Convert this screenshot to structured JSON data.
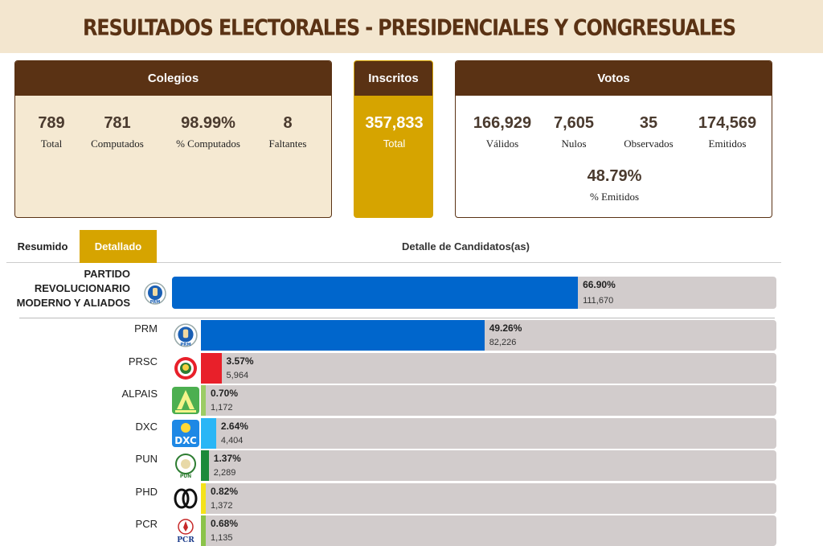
{
  "header": {
    "title": "RESULTADOS ELECTORALES - PRESIDENCIALES Y CONGRESUALES"
  },
  "colegios": {
    "title": "Colegios",
    "stats": [
      {
        "value": "789",
        "label": "Total"
      },
      {
        "value": "781",
        "label": "Computados"
      },
      {
        "value": "98.99%",
        "label": "% Computados"
      },
      {
        "value": "8",
        "label": "Faltantes"
      }
    ]
  },
  "inscritos": {
    "title": "Inscritos",
    "value": "357,833",
    "label": "Total"
  },
  "votos": {
    "title": "Votos",
    "stats": [
      {
        "value": "166,929",
        "label": "Válidos"
      },
      {
        "value": "7,605",
        "label": "Nulos"
      },
      {
        "value": "35",
        "label": "Observados"
      },
      {
        "value": "174,569",
        "label": "Emitidos"
      }
    ],
    "emitidos_pct": {
      "value": "48.79%",
      "label": "% Emitidos"
    }
  },
  "tabs": {
    "resumen": "Resumido",
    "detallado": "Detallado",
    "detail_title": "Detalle de Candidatos(as)"
  },
  "alliance": {
    "name": "PARTIDO REVOLUCIONARIO MODERNO Y ALIADOS",
    "name_lines": [
      "PARTIDO",
      "REVOLUCIONARIO",
      "MODERNO Y ALIADOS"
    ],
    "pct": "66.90%",
    "votes": "111,670",
    "fraction": 0.669,
    "color": "#0066cc"
  },
  "parties": [
    {
      "code": "PRM",
      "pct": "49.26%",
      "votes": "82,226",
      "fraction": 0.4926,
      "color": "#0066cc",
      "logo": "prm-logo"
    },
    {
      "code": "PRSC",
      "pct": "3.57%",
      "votes": "5,964",
      "fraction": 0.0357,
      "color": "#e8202a",
      "logo": "prsc-logo"
    },
    {
      "code": "ALPAIS",
      "pct": "0.70%",
      "votes": "1,172",
      "fraction": 0.007,
      "color": "#9ccc65",
      "logo": "alpais-logo"
    },
    {
      "code": "DXC",
      "pct": "2.64%",
      "votes": "4,404",
      "fraction": 0.0264,
      "color": "#29b6f6",
      "logo": "dxc-logo"
    },
    {
      "code": "PUN",
      "pct": "1.37%",
      "votes": "2,289",
      "fraction": 0.0137,
      "color": "#1b8a3a",
      "logo": "pun-logo"
    },
    {
      "code": "PHD",
      "pct": "0.82%",
      "votes": "1,372",
      "fraction": 0.0082,
      "color": "#f4e21a",
      "logo": "phd-logo"
    },
    {
      "code": "PCR",
      "pct": "0.68%",
      "votes": "1,135",
      "fraction": 0.0068,
      "color": "#8bc34a",
      "logo": "pcr-logo"
    }
  ]
}
